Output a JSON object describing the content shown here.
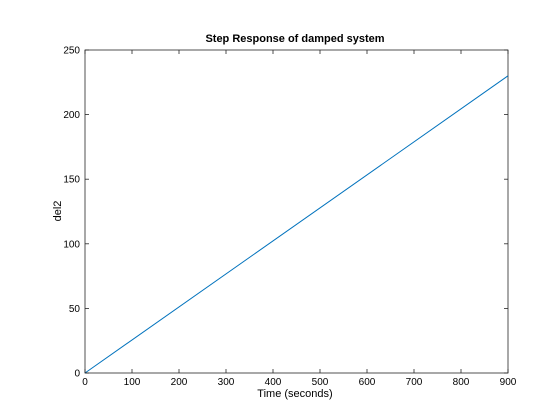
{
  "chart_data": {
    "type": "line",
    "title": "Step Response of damped system",
    "xlabel": "Time (seconds)",
    "ylabel": "del2",
    "xlim": [
      0,
      900
    ],
    "ylim": [
      0,
      250
    ],
    "xticks": [
      0,
      100,
      200,
      300,
      400,
      500,
      600,
      700,
      800,
      900
    ],
    "yticks": [
      0,
      50,
      100,
      150,
      200,
      250
    ],
    "grid": false,
    "series": [
      {
        "color": "#0072bd",
        "x": [
          0,
          900
        ],
        "y": [
          0,
          230
        ]
      }
    ]
  }
}
